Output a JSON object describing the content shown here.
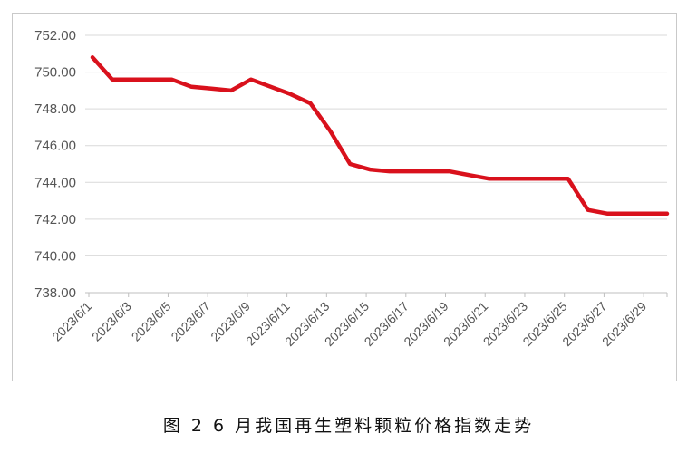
{
  "chart_data": {
    "type": "line",
    "title": "",
    "xlabel": "",
    "ylabel": "",
    "ylim": [
      738,
      752
    ],
    "y_ticks": [
      "752.00",
      "750.00",
      "748.00",
      "746.00",
      "744.00",
      "742.00",
      "740.00",
      "738.00"
    ],
    "x_tick_labels": [
      "2023/6/1",
      "2023/6/3",
      "2023/6/5",
      "2023/6/7",
      "2023/6/9",
      "2023/6/11",
      "2023/6/13",
      "2023/6/15",
      "2023/6/17",
      "2023/6/19",
      "2023/6/21",
      "2023/6/23",
      "2023/6/25",
      "2023/6/27",
      "2023/6/29"
    ],
    "x": [
      "2023/6/1",
      "2023/6/2",
      "2023/6/3",
      "2023/6/4",
      "2023/6/5",
      "2023/6/6",
      "2023/6/7",
      "2023/6/8",
      "2023/6/9",
      "2023/6/10",
      "2023/6/11",
      "2023/6/12",
      "2023/6/13",
      "2023/6/14",
      "2023/6/15",
      "2023/6/16",
      "2023/6/17",
      "2023/6/18",
      "2023/6/19",
      "2023/6/20",
      "2023/6/21",
      "2023/6/22",
      "2023/6/23",
      "2023/6/24",
      "2023/6/25",
      "2023/6/26",
      "2023/6/27",
      "2023/6/28",
      "2023/6/29",
      "2023/6/30"
    ],
    "series": [
      {
        "color": "#d9111c",
        "values": [
          750.8,
          749.6,
          749.6,
          749.6,
          749.6,
          749.2,
          749.1,
          749.0,
          749.6,
          749.2,
          748.8,
          748.3,
          746.8,
          745.0,
          744.7,
          744.6,
          744.6,
          744.6,
          744.6,
          744.4,
          744.2,
          744.2,
          744.2,
          744.2,
          744.2,
          742.5,
          742.3,
          742.3,
          742.3,
          742.3
        ]
      }
    ],
    "grid": true,
    "legend": "none",
    "gridline_color": "#d9d9d9"
  },
  "caption": "图 2 6 月我国再生塑料颗粒价格指数走势"
}
